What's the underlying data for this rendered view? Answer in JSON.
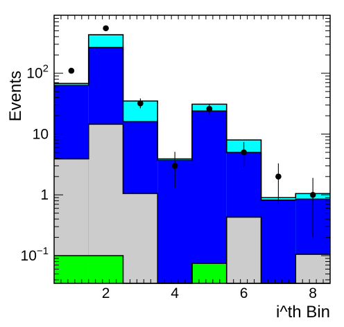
{
  "chart_data": {
    "type": "bar",
    "title": "",
    "xlabel": "i^th Bin",
    "ylabel": "Events",
    "xlim": [
      0.5,
      8.5
    ],
    "ylim": [
      0.035,
      900
    ],
    "yscale": "log",
    "grid": false,
    "legend": "none",
    "x_bins": [
      [
        0.5,
        1.5
      ],
      [
        1.5,
        2.5
      ],
      [
        2.5,
        3.5
      ],
      [
        3.5,
        4.5
      ],
      [
        4.5,
        5.5
      ],
      [
        5.5,
        6.5
      ],
      [
        6.5,
        7.5
      ],
      [
        7.5,
        8.5
      ]
    ],
    "x_ticks": [
      2,
      4,
      6,
      8
    ],
    "x_tick_labels": [
      "2",
      "4",
      "6",
      "8"
    ],
    "y_ticks": [
      0.1,
      1,
      10,
      100
    ],
    "y_tick_labels": [
      {
        "base": "10",
        "exp": "−1"
      },
      {
        "base": "1",
        "exp": ""
      },
      {
        "base": "10",
        "exp": ""
      },
      {
        "base": "10",
        "exp": "2"
      }
    ],
    "series": [
      {
        "key": "cyan",
        "color": "#00ffff",
        "stack_top": [
          68,
          430,
          35,
          3.9,
          31,
          8,
          0.9,
          1.05
        ]
      },
      {
        "key": "blue",
        "color": "#0000ff",
        "stack_top": [
          63,
          265,
          16,
          3.7,
          24,
          5,
          0.82,
          0.85
        ]
      },
      {
        "key": "gray",
        "color": "#cccccc",
        "stack_top": [
          3.9,
          14.5,
          1.05,
          0.035,
          0.075,
          0.43,
          0.035,
          0.105
        ]
      },
      {
        "key": "green",
        "color": "#00ff00",
        "stack_top": [
          0.1,
          0.1,
          0.035,
          0.035,
          0.075,
          0.035,
          0.035,
          0.035
        ]
      }
    ],
    "data_points": {
      "color": "#000000",
      "x": [
        1,
        2,
        3,
        4,
        5,
        6,
        7,
        8
      ],
      "y": [
        110,
        550,
        32,
        3,
        26,
        5,
        2,
        1
      ],
      "y_err_low": [
        10,
        23,
        5.5,
        1.7,
        5.0,
        2.2,
        1.3,
        0.8
      ],
      "y_err_high": [
        11,
        24,
        6.5,
        2.1,
        5.6,
        2.4,
        1.3,
        0.9
      ]
    }
  }
}
